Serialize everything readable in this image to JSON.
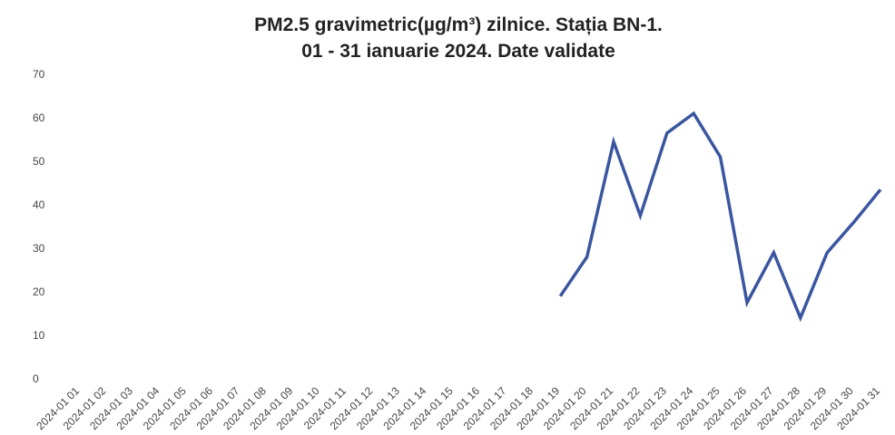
{
  "chart_data": {
    "type": "line",
    "title": [
      "PM2.5 gravimetric(µg/m³) zilnice. Stația BN-1.",
      "01 - 31 ianuarie 2024. Date validate"
    ],
    "categories": [
      "2024-01 01",
      "2024-01 02",
      "2024-01 03",
      "2024-01 04",
      "2024-01 05",
      "2024-01 06",
      "2024-01 07",
      "2024-01 08",
      "2024-01 09",
      "2024-01 10",
      "2024-01 11",
      "2024-01 12",
      "2024-01 13",
      "2024-01 14",
      "2024-01 15",
      "2024-01 16",
      "2024-01 17",
      "2024-01 18",
      "2024-01 19",
      "2024-01 20",
      "2024-01 21",
      "2024-01 22",
      "2024-01 23",
      "2024-01 24",
      "2024-01 25",
      "2024-01 26",
      "2024-01 27",
      "2024-01 28",
      "2024-01 29",
      "2024-01 30",
      "2024-01 31"
    ],
    "values": [
      null,
      null,
      null,
      null,
      null,
      null,
      null,
      null,
      null,
      null,
      null,
      null,
      null,
      null,
      null,
      null,
      null,
      null,
      19,
      28,
      54.5,
      37.5,
      56.5,
      61,
      51,
      17.5,
      29,
      14,
      29,
      36,
      43.5
    ],
    "color": "#3a56a0",
    "ylim": [
      0,
      70
    ],
    "yticks": [
      0,
      10,
      20,
      30,
      40,
      50,
      60,
      70
    ],
    "grid": false
  }
}
